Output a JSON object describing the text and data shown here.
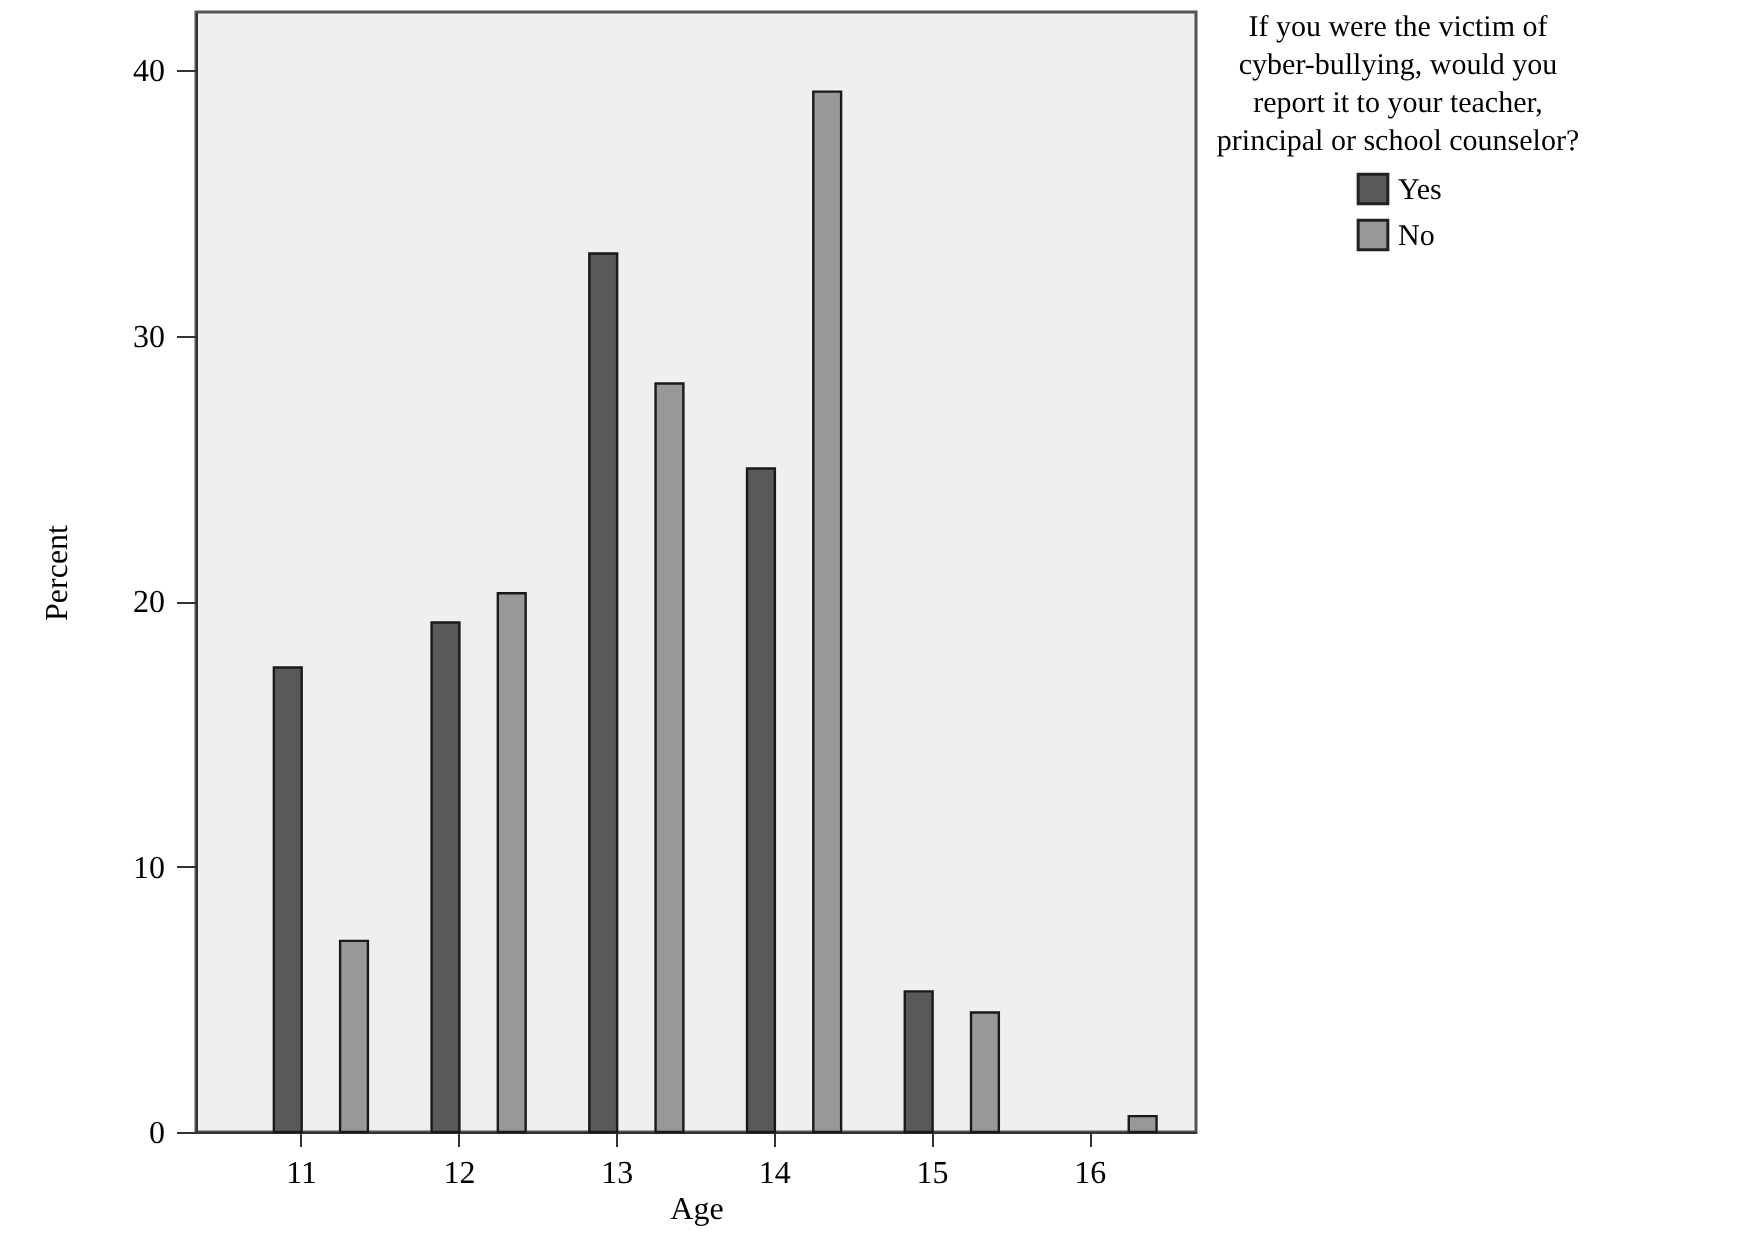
{
  "chart_data": {
    "type": "bar",
    "xlabel": "Age",
    "ylabel": "Percent",
    "legend_title": "If you were the victim of cyber-bullying, would you report it to your teacher, principal or school counselor?",
    "categories": [
      "11",
      "12",
      "13",
      "14",
      "15",
      "16"
    ],
    "series": [
      {
        "name": "Yes",
        "color": "#595959",
        "values": [
          17.5,
          19.2,
          33.1,
          25.0,
          5.3,
          null
        ]
      },
      {
        "name": "No",
        "color": "#989898",
        "values": [
          7.2,
          20.3,
          28.2,
          39.2,
          4.5,
          0.6
        ]
      }
    ],
    "ylim": [
      0,
      42.2
    ],
    "yticks": [
      0,
      10,
      20,
      30,
      40
    ],
    "grid": false,
    "legend": "top right"
  }
}
